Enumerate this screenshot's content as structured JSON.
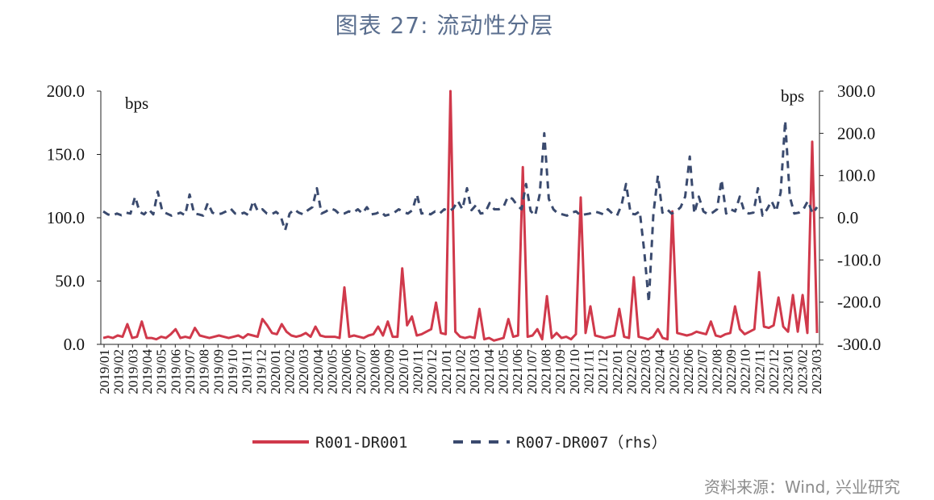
{
  "title": "图表 27:  流动性分层",
  "source": "资料来源：Wind, 兴业研究",
  "chart_data": {
    "type": "line",
    "left_unit": "bps",
    "right_unit": "bps",
    "y_left": {
      "min": 0,
      "max": 200,
      "ticks": [
        "0.0",
        "50.0",
        "100.0",
        "150.0",
        "200.0"
      ]
    },
    "y_right": {
      "min": -300,
      "max": 300,
      "ticks": [
        "-300.0",
        "-200.0",
        "-100.0",
        "0.0",
        "100.0",
        "200.0",
        "300.0"
      ]
    },
    "x_labels": [
      "2019/01",
      "2019/02",
      "2019/03",
      "2019/04",
      "2019/05",
      "2019/06",
      "2019/07",
      "2019/08",
      "2019/09",
      "2019/10",
      "2019/11",
      "2019/12",
      "2020/01",
      "2020/02",
      "2020/03",
      "2020/04",
      "2020/05",
      "2020/06",
      "2020/07",
      "2020/08",
      "2020/09",
      "2020/10",
      "2020/11",
      "2020/12",
      "2021/01",
      "2021/02",
      "2021/03",
      "2021/04",
      "2021/05",
      "2021/06",
      "2021/07",
      "2021/08",
      "2021/09",
      "2021/10",
      "2021/11",
      "2021/12",
      "2022/01",
      "2022/02",
      "2022/03",
      "2022/04",
      "2022/05",
      "2022/06",
      "2022/07",
      "2022/08",
      "2022/09",
      "2022/10",
      "2022/11",
      "2022/12",
      "2023/01",
      "2023/02",
      "2023/03"
    ],
    "series": [
      {
        "name": "R001-DR001",
        "axis": "left",
        "color": "#d0394b",
        "style": "solid",
        "values": [
          5,
          6,
          5,
          7,
          6,
          16,
          5,
          6,
          18,
          5,
          5,
          4,
          6,
          5,
          8,
          12,
          5,
          6,
          5,
          13,
          7,
          6,
          5,
          6,
          7,
          6,
          5,
          6,
          7,
          5,
          8,
          7,
          6,
          20,
          15,
          9,
          8,
          16,
          10,
          7,
          6,
          7,
          9,
          6,
          14,
          7,
          6,
          6,
          6,
          5,
          45,
          6,
          7,
          6,
          5,
          7,
          8,
          14,
          7,
          18,
          6,
          6,
          60,
          15,
          22,
          7,
          8,
          10,
          12,
          33,
          9,
          8,
          200,
          10,
          6,
          5,
          6,
          5,
          28,
          4,
          5,
          3,
          4,
          5,
          20,
          6,
          7,
          140,
          6,
          7,
          12,
          4,
          38,
          5,
          9,
          5,
          6,
          4,
          8,
          116,
          9,
          30,
          7,
          6,
          5,
          6,
          7,
          28,
          6,
          5,
          53,
          6,
          5,
          4,
          6,
          12,
          5,
          4,
          105,
          9,
          8,
          7,
          8,
          10,
          9,
          8,
          18,
          7,
          6,
          8,
          9,
          30,
          12,
          8,
          10,
          12,
          57,
          14,
          13,
          15,
          37,
          14,
          10,
          39,
          10,
          39,
          9,
          160,
          9
        ]
      },
      {
        "name": "R007-DR007（rhs）",
        "axis": "right",
        "color": "#3a4a6e",
        "style": "dashed",
        "values": [
          15,
          8,
          5,
          10,
          6,
          12,
          10,
          50,
          14,
          8,
          20,
          8,
          62,
          15,
          10,
          5,
          8,
          12,
          6,
          55,
          10,
          8,
          5,
          35,
          12,
          8,
          10,
          15,
          22,
          10,
          8,
          12,
          6,
          40,
          15,
          20,
          10,
          8,
          14,
          5,
          -30,
          10,
          20,
          12,
          8,
          18,
          25,
          70,
          10,
          15,
          22,
          18,
          8,
          10,
          15,
          12,
          20,
          10,
          25,
          8,
          10,
          15,
          5,
          8,
          12,
          20,
          14,
          10,
          18,
          55,
          10,
          12,
          8,
          15,
          10,
          20,
          15,
          22,
          40,
          20,
          70,
          18,
          30,
          10,
          12,
          35,
          20,
          20,
          25,
          50,
          45,
          30,
          20,
          80,
          16,
          5,
          55,
          200,
          45,
          20,
          10,
          8,
          5,
          12,
          15,
          5,
          8,
          10,
          15,
          12,
          8,
          20,
          10,
          5,
          30,
          80,
          10,
          8,
          15,
          -80,
          -200,
          10,
          100,
          12,
          20,
          10,
          15,
          25,
          50,
          145,
          10,
          50,
          15,
          8,
          12,
          20,
          90,
          10,
          20,
          15,
          50,
          15,
          10,
          12,
          70,
          5,
          20,
          40,
          15,
          60,
          230,
          50,
          10,
          12,
          20,
          40,
          10,
          25
        ]
      }
    ]
  }
}
